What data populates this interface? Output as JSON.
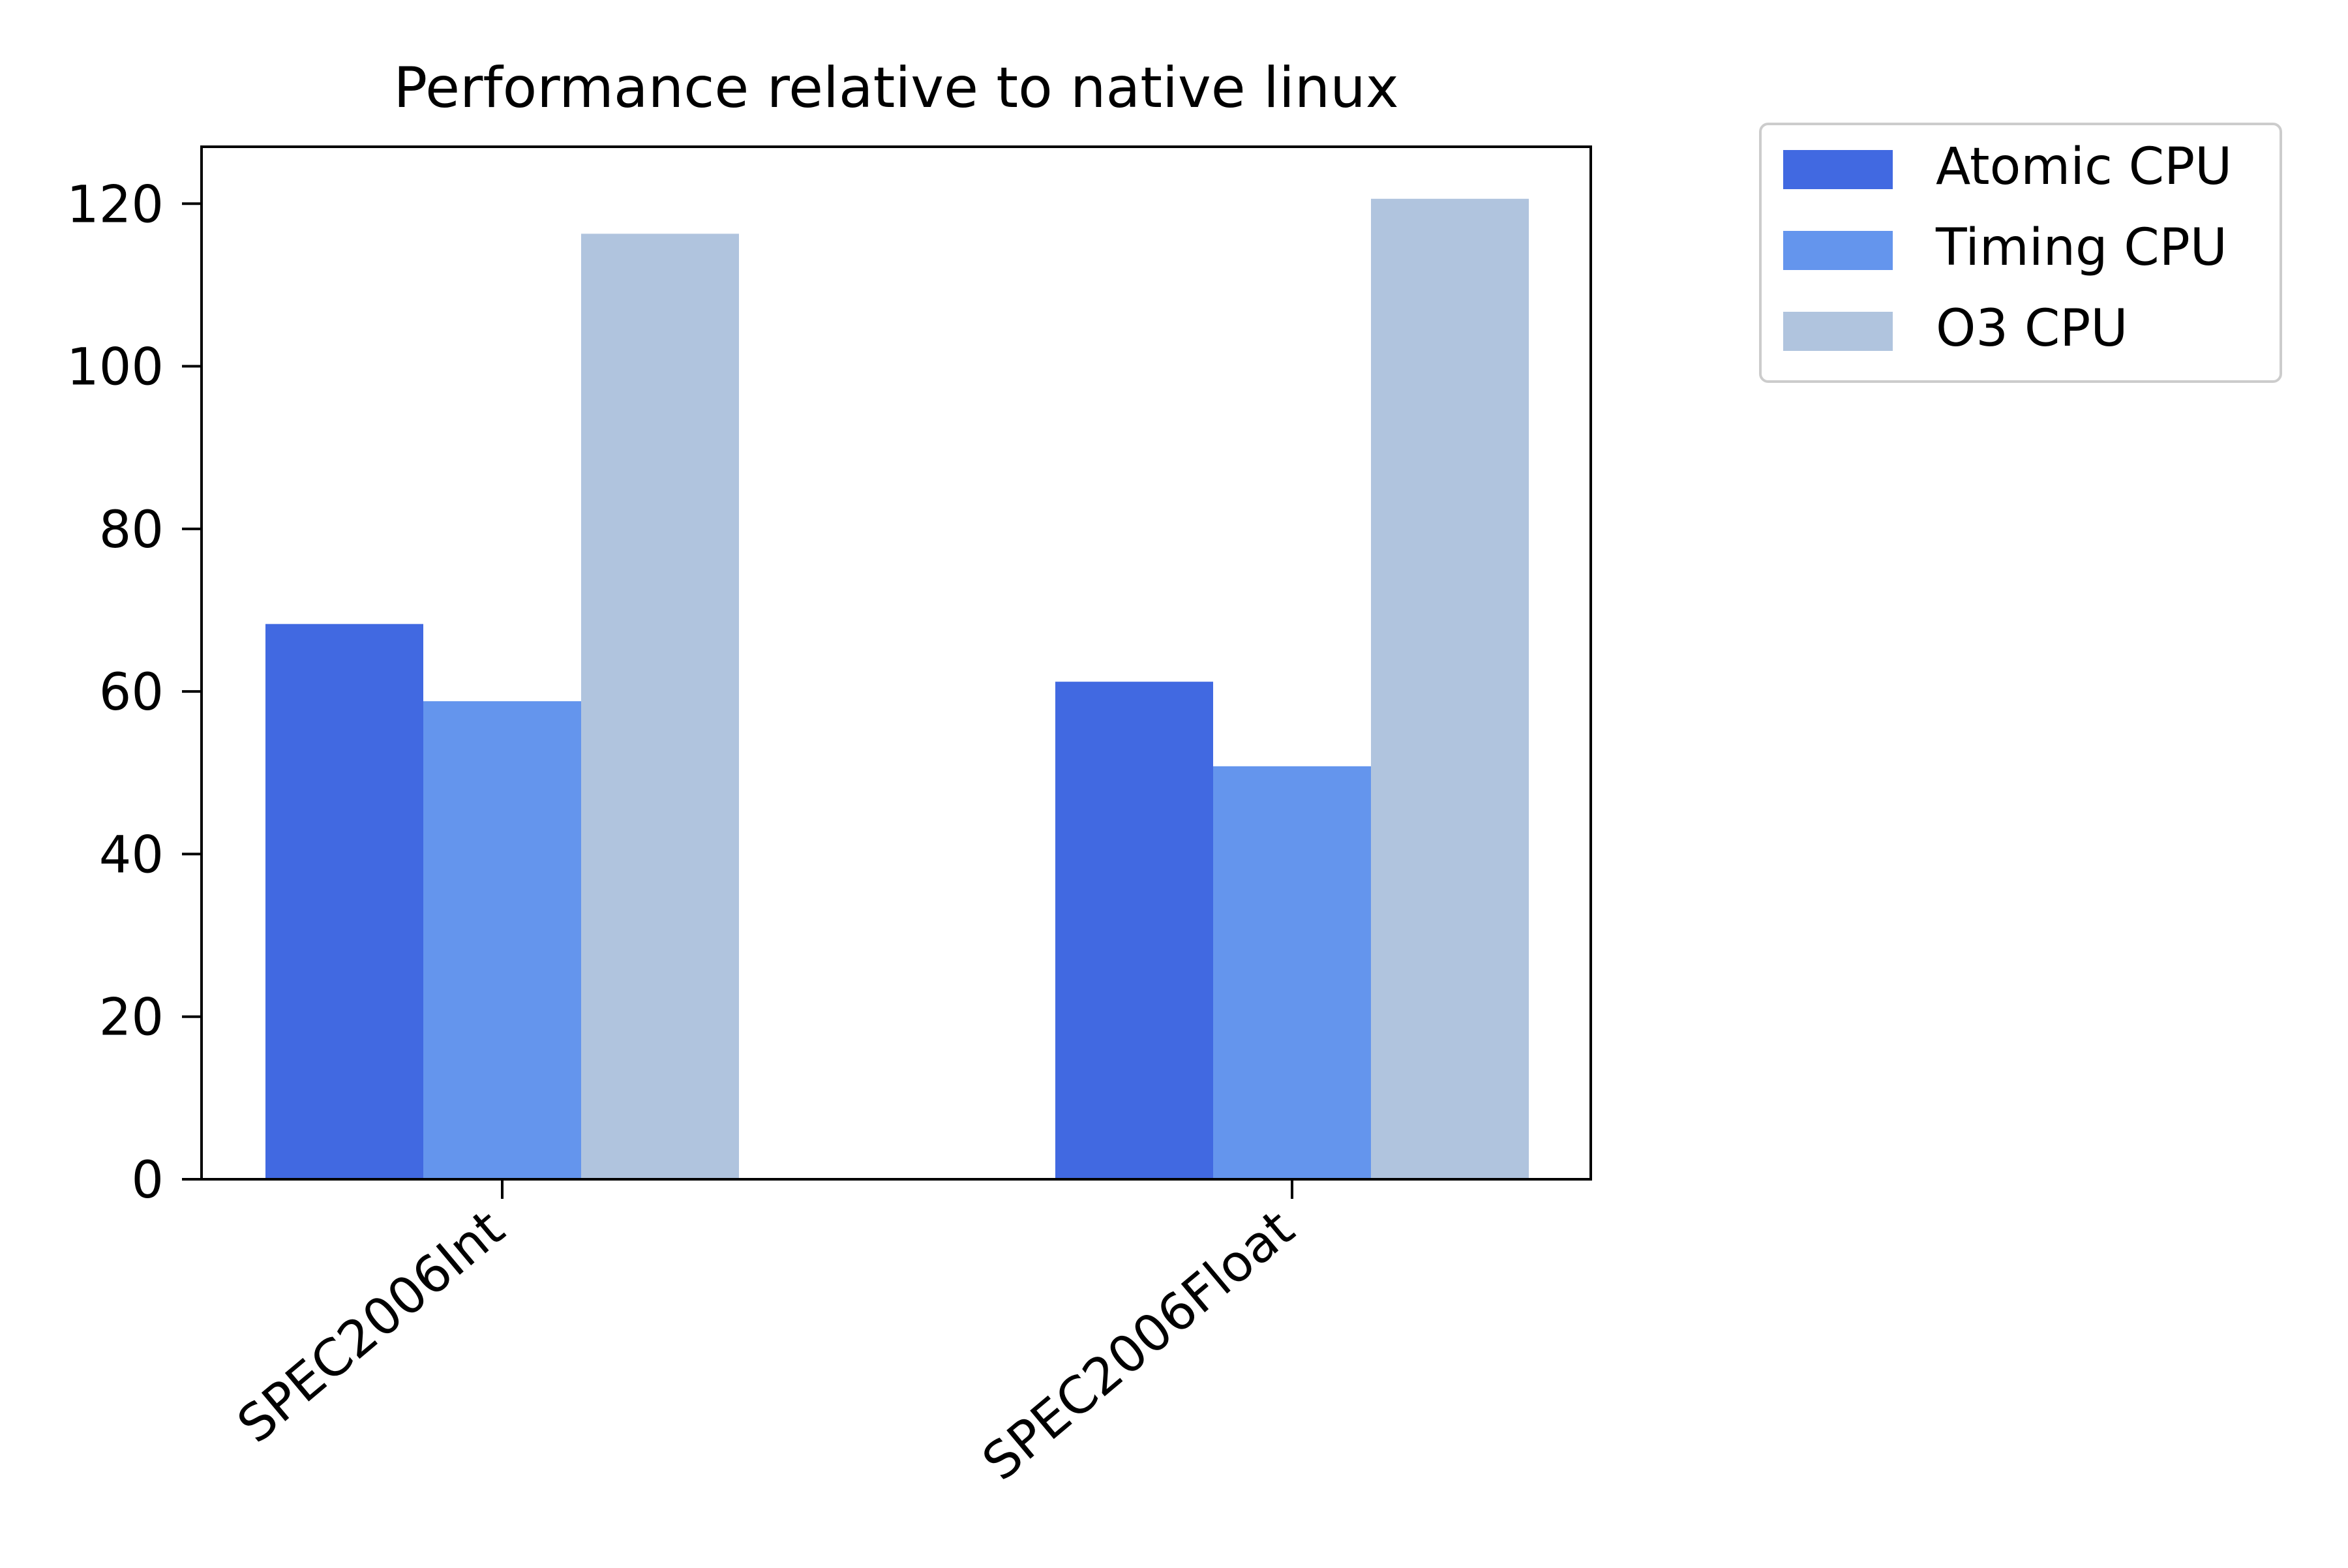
{
  "chart_data": {
    "type": "bar",
    "title": "Performance relative to native linux",
    "xlabel": "",
    "ylabel": "",
    "categories": [
      "SPEC2006Int",
      "SPEC2006Float"
    ],
    "series": [
      {
        "name": "Atomic CPU",
        "color": "#4169e1",
        "values": [
          68.3,
          61.2
        ]
      },
      {
        "name": "Timing CPU",
        "color": "#6495ed",
        "values": [
          58.8,
          50.8
        ]
      },
      {
        "name": "O3 CPU",
        "color": "#b0c4de",
        "values": [
          116.3,
          120.6
        ]
      }
    ],
    "ylim": [
      0,
      127
    ],
    "yticks": [
      0,
      20,
      40,
      60,
      80,
      100,
      120
    ],
    "grid": false,
    "legend_position": "outside-top-right"
  }
}
